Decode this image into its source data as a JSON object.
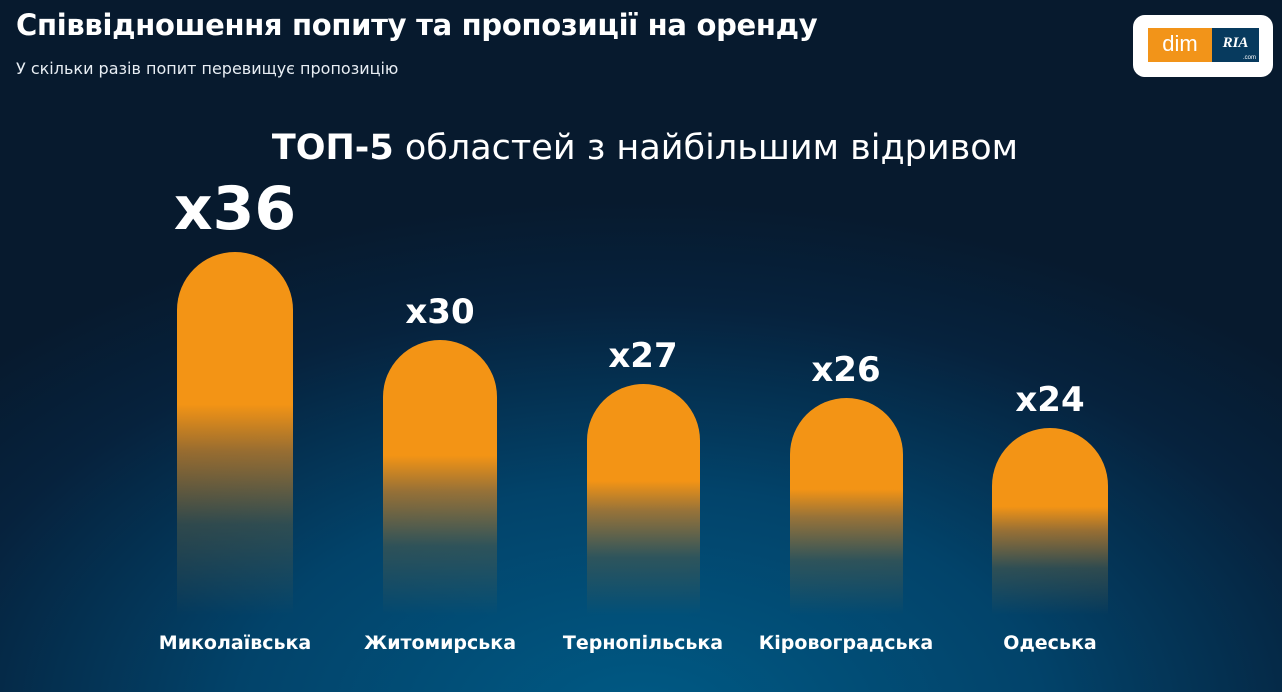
{
  "header": {
    "title": "Співвідношення попиту та пропозиції на оренду",
    "subtitle": "У скільки разів попит перевищує пропозицію"
  },
  "logo": {
    "left": "dim",
    "right": "RIA",
    "suffix": ".com",
    "colors": {
      "orange": "#f29419",
      "navy": "#073a5e"
    }
  },
  "chart_data": {
    "type": "bar",
    "title_bold": "ТОП-5",
    "title_rest": "областей з найбільшим відривом",
    "categories": [
      "Миколаївська",
      "Житомирська",
      "Тернопільська",
      "Кіровоградська",
      "Одеська"
    ],
    "values": [
      36,
      30,
      27,
      26,
      24
    ],
    "value_labels": [
      "x36",
      "x30",
      "x27",
      "x26",
      "x24"
    ],
    "bar_color": "#f39415",
    "grid": false
  }
}
